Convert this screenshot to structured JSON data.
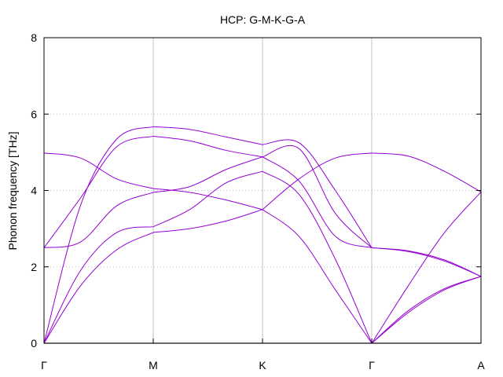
{
  "chart_data": {
    "type": "line",
    "title": "HCP: G-M-K-G-A",
    "xlabel": "",
    "ylabel": "Phonon frequency [THz]",
    "ylim": [
      0,
      8
    ],
    "yticks": [
      0,
      2,
      4,
      6,
      8
    ],
    "grid": "dotted horizontal at y ticks; solid vertical at high-symmetry points; solid line at y=0",
    "colors": {
      "bands": "#9400d3",
      "grid": "#c0c0c0",
      "zero_line": "#a0a0a0"
    },
    "high_symmetry_points": [
      {
        "label": "Γ",
        "x": 0
      },
      {
        "label": "M",
        "x": 1
      },
      {
        "label": "K",
        "x": 2
      },
      {
        "label": "Γ",
        "x": 3
      },
      {
        "label": "A",
        "x": 4
      }
    ],
    "segments": [
      {
        "name": "Γ-M",
        "from": 0,
        "to": 1,
        "bands": [
          [
            0,
            1.5,
            2.45,
            2.9
          ],
          [
            0,
            1.9,
            2.9,
            3.05
          ],
          [
            2.5,
            2.65,
            3.6,
            3.95
          ],
          [
            2.5,
            3.8,
            5.15,
            5.42
          ],
          [
            4.98,
            4.85,
            4.3,
            4.05
          ],
          [
            0,
            3.6,
            5.35,
            5.67
          ]
        ]
      },
      {
        "name": "M-K",
        "from": 1,
        "to": 2,
        "bands": [
          [
            2.9,
            3.0,
            3.2,
            3.5
          ],
          [
            3.05,
            3.5,
            4.2,
            4.5
          ],
          [
            3.95,
            4.1,
            4.55,
            4.88
          ],
          [
            5.42,
            5.3,
            5.05,
            4.88
          ],
          [
            4.05,
            3.95,
            3.75,
            3.5
          ],
          [
            5.67,
            5.6,
            5.4,
            5.2
          ]
        ]
      },
      {
        "name": "K-Γ",
        "from": 2,
        "to": 3,
        "bands": [
          [
            3.5,
            4.3,
            4.85,
            4.98
          ],
          [
            4.5,
            3.9,
            2.2,
            0
          ],
          [
            4.88,
            4.25,
            2.8,
            2.5
          ],
          [
            4.88,
            5.1,
            3.4,
            2.5
          ],
          [
            3.5,
            2.8,
            1.4,
            0
          ],
          [
            5.2,
            5.25,
            4.0,
            2.5
          ]
        ]
      },
      {
        "name": "Γ-A",
        "from": 3,
        "to": 4,
        "bands": [
          [
            4.98,
            4.9,
            4.5,
            3.96
          ],
          [
            0,
            1.5,
            2.9,
            3.96
          ],
          [
            0,
            0.8,
            1.4,
            1.75
          ],
          [
            0,
            0.85,
            1.43,
            1.75
          ],
          [
            2.5,
            2.4,
            2.15,
            1.75
          ],
          [
            2.5,
            2.42,
            2.18,
            1.75
          ]
        ]
      }
    ]
  }
}
